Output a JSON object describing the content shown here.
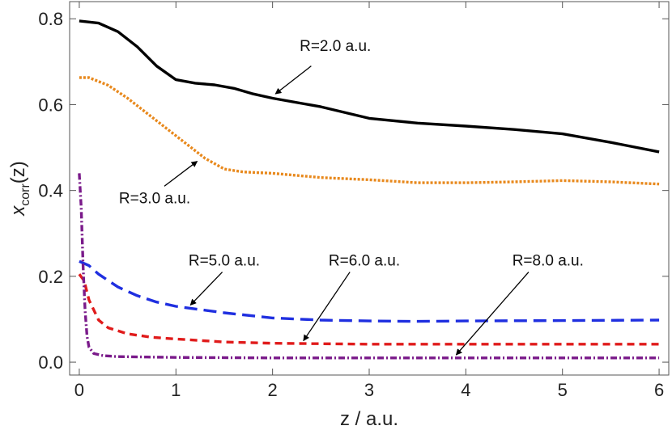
{
  "chart_data": {
    "type": "line",
    "xlabel": "z / a.u.",
    "ylabel_main": "x",
    "ylabel_sub": "corr",
    "ylabel_suffix": "(z)",
    "xlim": [
      -0.1,
      6.1
    ],
    "ylim": [
      -0.03,
      0.84
    ],
    "xticks": [
      0,
      1,
      2,
      3,
      4,
      5,
      6
    ],
    "yticks": [
      0.0,
      0.2,
      0.4,
      0.6,
      0.8
    ],
    "ytick_labels": [
      "0.0",
      "0.2",
      "0.4",
      "0.6",
      "0.8"
    ],
    "series": [
      {
        "name": "R=2.0 a.u.",
        "color": "#000000",
        "dash": "solid",
        "points": [
          [
            0,
            0.795
          ],
          [
            0.2,
            0.79
          ],
          [
            0.4,
            0.77
          ],
          [
            0.6,
            0.735
          ],
          [
            0.8,
            0.69
          ],
          [
            1.0,
            0.658
          ],
          [
            1.2,
            0.65
          ],
          [
            1.4,
            0.646
          ],
          [
            1.6,
            0.638
          ],
          [
            1.8,
            0.625
          ],
          [
            2.0,
            0.615
          ],
          [
            2.5,
            0.595
          ],
          [
            3.0,
            0.568
          ],
          [
            3.5,
            0.557
          ],
          [
            4.0,
            0.55
          ],
          [
            4.5,
            0.542
          ],
          [
            5.0,
            0.532
          ],
          [
            5.5,
            0.512
          ],
          [
            6.0,
            0.49
          ]
        ]
      },
      {
        "name": "R=3.0 a.u.",
        "color": "#e8891d",
        "dash": "dotted",
        "points": [
          [
            0,
            0.663
          ],
          [
            0.1,
            0.663
          ],
          [
            0.3,
            0.645
          ],
          [
            0.5,
            0.615
          ],
          [
            0.7,
            0.58
          ],
          [
            0.9,
            0.545
          ],
          [
            1.1,
            0.51
          ],
          [
            1.3,
            0.475
          ],
          [
            1.5,
            0.45
          ],
          [
            1.7,
            0.443
          ],
          [
            2.0,
            0.44
          ],
          [
            2.5,
            0.43
          ],
          [
            3.0,
            0.425
          ],
          [
            3.5,
            0.418
          ],
          [
            4.0,
            0.418
          ],
          [
            4.5,
            0.42
          ],
          [
            5.0,
            0.423
          ],
          [
            5.5,
            0.42
          ],
          [
            6.0,
            0.415
          ]
        ]
      },
      {
        "name": "R=5.0 a.u.",
        "color": "#1f2fe0",
        "dash": "long-dash",
        "points": [
          [
            0,
            0.235
          ],
          [
            0.1,
            0.225
          ],
          [
            0.2,
            0.205
          ],
          [
            0.4,
            0.175
          ],
          [
            0.6,
            0.155
          ],
          [
            0.8,
            0.14
          ],
          [
            1.0,
            0.13
          ],
          [
            1.5,
            0.115
          ],
          [
            2.0,
            0.103
          ],
          [
            2.5,
            0.098
          ],
          [
            3.0,
            0.096
          ],
          [
            3.5,
            0.095
          ],
          [
            4.0,
            0.096
          ],
          [
            5.0,
            0.097
          ],
          [
            6.0,
            0.098
          ]
        ]
      },
      {
        "name": "R=6.0 a.u.",
        "color": "#e01b1b",
        "dash": "short-dash",
        "points": [
          [
            0,
            0.205
          ],
          [
            0.05,
            0.19
          ],
          [
            0.1,
            0.145
          ],
          [
            0.2,
            0.098
          ],
          [
            0.3,
            0.08
          ],
          [
            0.5,
            0.066
          ],
          [
            0.75,
            0.058
          ],
          [
            1.0,
            0.054
          ],
          [
            1.5,
            0.047
          ],
          [
            2.0,
            0.044
          ],
          [
            3.0,
            0.042
          ],
          [
            4.0,
            0.042
          ],
          [
            5.0,
            0.042
          ],
          [
            6.0,
            0.042
          ]
        ]
      },
      {
        "name": "R=8.0 a.u.",
        "color": "#7a1a8a",
        "dash": "dash-dot",
        "points": [
          [
            0,
            0.44
          ],
          [
            0.02,
            0.36
          ],
          [
            0.04,
            0.22
          ],
          [
            0.06,
            0.12
          ],
          [
            0.08,
            0.06
          ],
          [
            0.1,
            0.035
          ],
          [
            0.15,
            0.02
          ],
          [
            0.25,
            0.015
          ],
          [
            0.4,
            0.013
          ],
          [
            0.7,
            0.012
          ],
          [
            1.0,
            0.011
          ],
          [
            2.0,
            0.01
          ],
          [
            3.0,
            0.01
          ],
          [
            4.0,
            0.01
          ],
          [
            5.0,
            0.01
          ],
          [
            6.0,
            0.01
          ]
        ]
      }
    ],
    "annotations": [
      {
        "text": "R=2.0 a.u.",
        "label_at": [
          2.65,
          0.725
        ],
        "tail": [
          2.4,
          0.69
        ],
        "head": [
          2.03,
          0.625
        ]
      },
      {
        "text": "R=3.0 a.u.",
        "label_at": [
          0.78,
          0.37
        ],
        "tail": [
          0.88,
          0.41
        ],
        "head": [
          1.22,
          0.468
        ]
      },
      {
        "text": "R=5.0 a.u.",
        "label_at": [
          1.5,
          0.225
        ],
        "tail": [
          1.48,
          0.21
        ],
        "head": [
          1.15,
          0.133
        ]
      },
      {
        "text": "R=6.0 a.u.",
        "label_at": [
          2.95,
          0.225
        ],
        "tail": [
          2.8,
          0.21
        ],
        "head": [
          2.32,
          0.05
        ]
      },
      {
        "text": "R=8.0 a.u.",
        "label_at": [
          4.85,
          0.225
        ],
        "tail": [
          4.65,
          0.21
        ],
        "head": [
          3.9,
          0.017
        ]
      }
    ]
  }
}
